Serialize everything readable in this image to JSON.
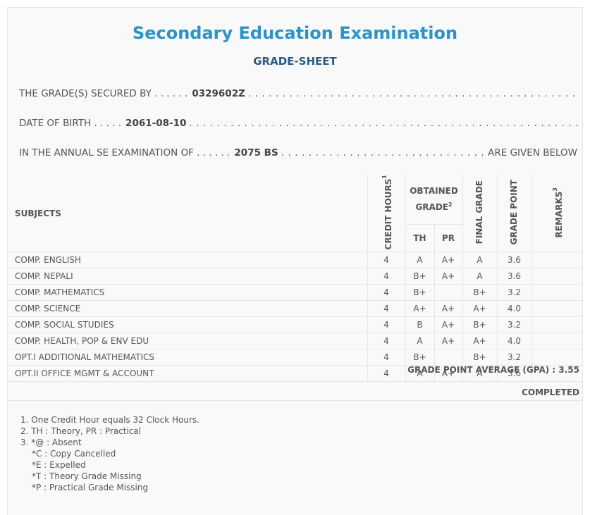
{
  "header": {
    "title": "Secondary Education Examination",
    "subtitle": "GRADE-SHEET"
  },
  "info": {
    "secured_label": "THE GRADE(S) SECURED BY . . . . . .",
    "symbol_no": "0329602Z",
    "dob_label": "DATE OF BIRTH . . . . .",
    "dob": "2061-08-10",
    "exam_label": "IN THE ANNUAL SE EXAMINATION OF . . . . . .",
    "exam_year": "2075 BS",
    "exam_tail": "ARE GIVEN BELOW"
  },
  "table": {
    "headers": {
      "subjects": "SUBJECTS",
      "credit_hours": "CREDIT HOURS",
      "credit_sup": "1",
      "obtained_grade": "OBTAINED GRADE",
      "obtained_sup": "2",
      "th": "TH",
      "pr": "PR",
      "final_grade": "FINAL GRADE",
      "grade_point": "GRADE POINT",
      "remarks": "REMARKS",
      "remarks_sup": "3"
    },
    "rows": [
      {
        "subject": "COMP. ENGLISH",
        "credit": "4",
        "th": "A",
        "pr": "A+",
        "final": "A",
        "gp": "3.6",
        "remarks": ""
      },
      {
        "subject": "COMP. NEPALI",
        "credit": "4",
        "th": "B+",
        "pr": "A+",
        "final": "A",
        "gp": "3.6",
        "remarks": ""
      },
      {
        "subject": "COMP. MATHEMATICS",
        "credit": "4",
        "th": "B+",
        "pr": "",
        "final": "B+",
        "gp": "3.2",
        "remarks": ""
      },
      {
        "subject": "COMP. SCIENCE",
        "credit": "4",
        "th": "A+",
        "pr": "A+",
        "final": "A+",
        "gp": "4.0",
        "remarks": ""
      },
      {
        "subject": "COMP. SOCIAL STUDIES",
        "credit": "4",
        "th": "B",
        "pr": "A+",
        "final": "B+",
        "gp": "3.2",
        "remarks": ""
      },
      {
        "subject": "COMP. HEALTH, POP & ENV EDU",
        "credit": "4",
        "th": "A",
        "pr": "A+",
        "final": "A+",
        "gp": "4.0",
        "remarks": ""
      },
      {
        "subject": "OPT.I ADDITIONAL MATHEMATICS",
        "credit": "4",
        "th": "B+",
        "pr": "",
        "final": "B+",
        "gp": "3.2",
        "remarks": ""
      },
      {
        "subject": "OPT.II OFFICE MGMT & ACCOUNT",
        "credit": "4",
        "th": "A",
        "pr": "A+",
        "final": "A",
        "gp": "3.6",
        "remarks": ""
      }
    ]
  },
  "summary": {
    "gpa_label": "GRADE POINT AVERAGE (GPA) : 3.55",
    "status": "COMPLETED"
  },
  "notes": {
    "n1": "1. One Credit Hour equals 32 Clock Hours.",
    "n2": "2. TH : Theory, PR : Practical",
    "n3": "3. *@ : Absent",
    "n3c": "*C : Copy Cancelled",
    "n3e": "*E : Expelled",
    "n3t": "*T : Theory Grade Missing",
    "n3p": "*P : Practical Grade Missing"
  }
}
